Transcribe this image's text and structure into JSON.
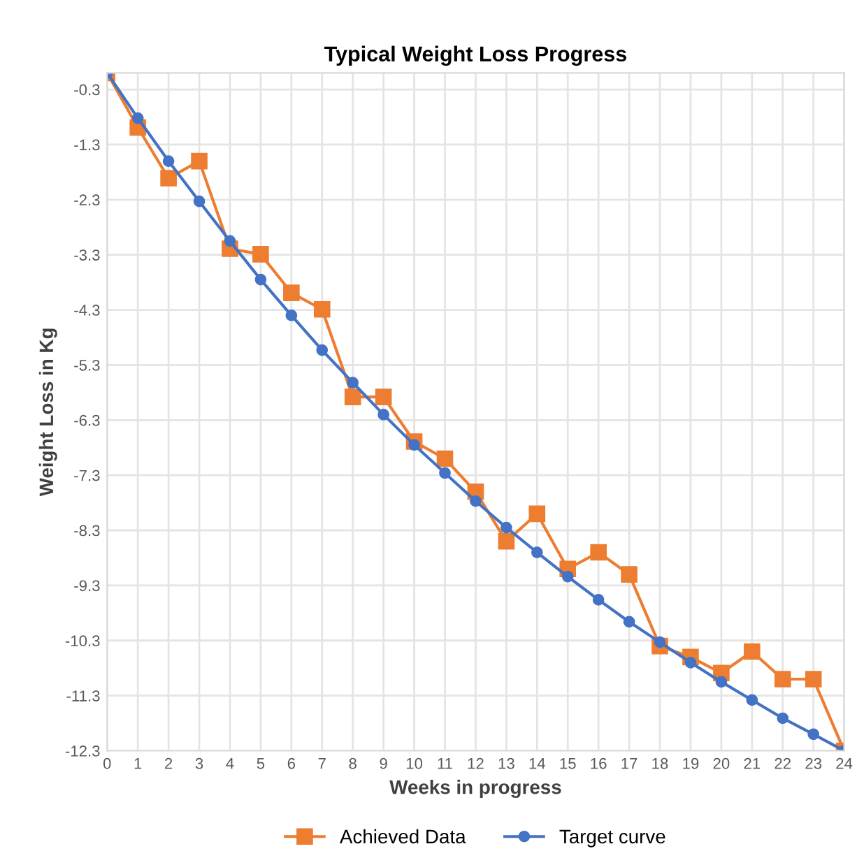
{
  "chart_data": {
    "type": "line",
    "title": "Typical Weight Loss Progress",
    "xlabel": "Weeks in progress",
    "ylabel": "Weight Loss in Kg",
    "x": [
      0,
      1,
      2,
      3,
      4,
      5,
      6,
      7,
      8,
      9,
      10,
      11,
      12,
      13,
      14,
      15,
      16,
      17,
      18,
      19,
      20,
      21,
      22,
      23,
      24
    ],
    "series": [
      {
        "name": "Achieved Data",
        "color": "#ed7d31",
        "marker": "square",
        "values": [
          0,
          -0.99,
          -1.91,
          -1.6,
          -3.19,
          -3.29,
          -3.99,
          -4.29,
          -5.88,
          -5.88,
          -6.69,
          -7.0,
          -7.6,
          -8.5,
          -8.0,
          -9.0,
          -8.7,
          -9.1,
          -10.4,
          -10.6,
          -10.89,
          -10.5,
          -11.0,
          -11.0,
          -12.3
        ]
      },
      {
        "name": "Target curve",
        "color": "#4472c4",
        "marker": "circle",
        "values": [
          0,
          -0.82,
          -1.6,
          -2.33,
          -3.05,
          -3.75,
          -4.4,
          -5.03,
          -5.62,
          -6.2,
          -6.75,
          -7.26,
          -7.77,
          -8.25,
          -8.7,
          -9.14,
          -9.56,
          -9.96,
          -10.33,
          -10.7,
          -11.05,
          -11.38,
          -11.71,
          -12.0,
          -12.3
        ]
      }
    ],
    "xlim": [
      0,
      24
    ],
    "xticks": [
      0,
      1,
      2,
      3,
      4,
      5,
      6,
      7,
      8,
      9,
      10,
      11,
      12,
      13,
      14,
      15,
      16,
      17,
      18,
      19,
      20,
      21,
      22,
      23,
      24
    ],
    "ylim": [
      -12.3,
      0
    ],
    "yticks": [
      -0.3,
      -1.3,
      -2.3,
      -3.3,
      -4.3,
      -5.3,
      -6.3,
      -7.3,
      -8.3,
      -9.3,
      -10.3,
      -11.3,
      -12.3
    ],
    "grid": true,
    "legend": "bottom",
    "line_style": "solid"
  }
}
